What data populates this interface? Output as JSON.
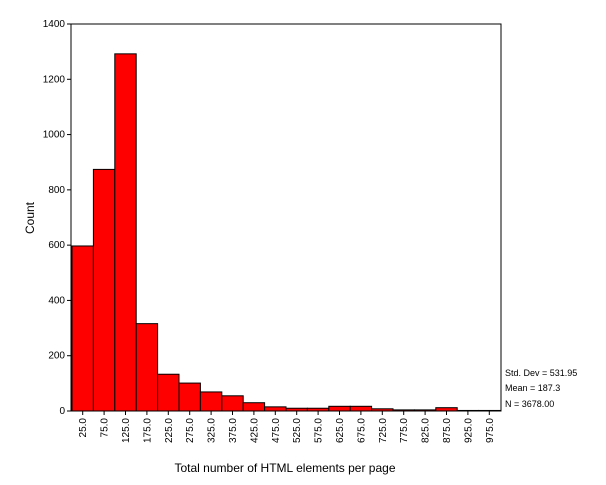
{
  "chart_data": {
    "type": "bar",
    "subtype": "histogram",
    "xlabel": "Total number of HTML elements per page",
    "ylabel": "Count",
    "categories": [
      "25.0",
      "75.0",
      "125.0",
      "175.0",
      "225.0",
      "275.0",
      "325.0",
      "375.0",
      "425.0",
      "475.0",
      "525.0",
      "575.0",
      "625.0",
      "675.0",
      "725.0",
      "775.0",
      "825.0",
      "875.0",
      "925.0",
      "975.0"
    ],
    "values": [
      597,
      874,
      1292,
      316,
      133,
      101,
      69,
      55,
      30,
      15,
      10,
      10,
      17,
      17,
      8,
      4,
      4,
      12,
      2,
      2
    ],
    "ylim": [
      0,
      1400
    ],
    "yticks": [
      0,
      200,
      400,
      600,
      800,
      1000,
      1200,
      1400
    ],
    "bar_color": "#ff0000",
    "grid": false,
    "stats": {
      "std_dev": "Std. Dev = 531.95",
      "mean": "Mean = 187.3",
      "n": "N = 3678.00"
    }
  }
}
